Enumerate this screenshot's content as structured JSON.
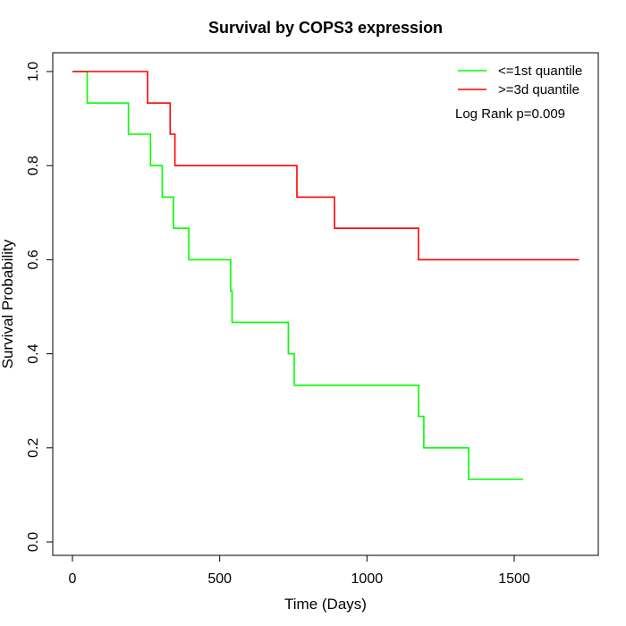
{
  "chart_data": {
    "type": "line",
    "title": "Survival by COPS3 expression",
    "xlabel": "Time (Days)",
    "ylabel": "Survival Probability",
    "xlim": [
      0,
      1720
    ],
    "ylim": [
      0,
      1
    ],
    "x_ticks": [
      0,
      500,
      1000,
      1500
    ],
    "y_ticks": [
      0.0,
      0.2,
      0.4,
      0.6,
      0.8,
      1.0
    ],
    "x_tick_labels": [
      "0",
      "500",
      "1000",
      "1500"
    ],
    "y_tick_labels": [
      "0.0",
      "0.2",
      "0.4",
      "0.6",
      "0.8",
      "1.0"
    ],
    "grid": false,
    "legend_position": "top-right",
    "annotation": "Log Rank p=0.009",
    "series": [
      {
        "name": "<=1st quantile",
        "color": "#00ff00",
        "step_points": [
          [
            0,
            1.0
          ],
          [
            50,
            0.933
          ],
          [
            190,
            0.867
          ],
          [
            265,
            0.8
          ],
          [
            305,
            0.733
          ],
          [
            343,
            0.667
          ],
          [
            395,
            0.6
          ],
          [
            537,
            0.533
          ],
          [
            542,
            0.467
          ],
          [
            733,
            0.4
          ],
          [
            753,
            0.333
          ],
          [
            1175,
            0.267
          ],
          [
            1193,
            0.2
          ],
          [
            1345,
            0.133
          ],
          [
            1530,
            0.133
          ]
        ]
      },
      {
        "name": ">=3d quantile",
        "color": "#ff0000",
        "step_points": [
          [
            0,
            1.0
          ],
          [
            255,
            0.933
          ],
          [
            332,
            0.867
          ],
          [
            348,
            0.8
          ],
          [
            762,
            0.733
          ],
          [
            890,
            0.667
          ],
          [
            1175,
            0.6
          ],
          [
            1720,
            0.6
          ]
        ]
      }
    ]
  }
}
